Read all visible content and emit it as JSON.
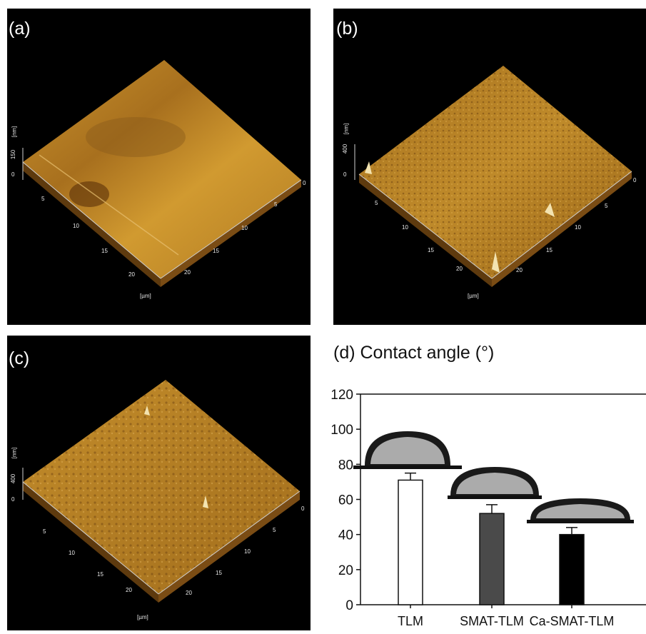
{
  "panels": [
    {
      "label": "(a)",
      "z_unit": "[nm]",
      "z_max": "150",
      "z_min": "0",
      "xy_unit": "[µm]",
      "left_ticks": [
        "5",
        "10",
        "15",
        "20"
      ],
      "right_ticks": [
        "0",
        "5",
        "10",
        "15",
        "20"
      ]
    },
    {
      "label": "(b)",
      "z_unit": "[nm]",
      "z_max": "400",
      "z_min": "0",
      "xy_unit": "[µm]",
      "left_ticks": [
        "5",
        "10",
        "15",
        "20"
      ],
      "right_ticks": [
        "0",
        "5",
        "10",
        "15",
        "20"
      ]
    },
    {
      "label": "(c)",
      "z_unit": "[nm]",
      "z_max": "400",
      "z_min": "0",
      "xy_unit": "[µm]",
      "left_ticks": [
        "5",
        "10",
        "15",
        "20"
      ],
      "right_ticks": [
        "0",
        "5",
        "10",
        "15",
        "20"
      ]
    }
  ],
  "colors": {
    "surface_light": "#d9a63a",
    "surface_mid": "#b98326",
    "surface_dark": "#6b4110",
    "bar_tlm": "#ffffff",
    "bar_smat": "#4a4a4a",
    "bar_ca": "#000000"
  },
  "chart_data": {
    "type": "bar",
    "title": "(d) Contact angle (°)",
    "categories": [
      "TLM",
      "SMAT-TLM",
      "Ca-SMAT-TLM"
    ],
    "values": [
      71,
      52,
      40
    ],
    "errors": [
      4,
      5,
      4
    ],
    "ylim": [
      0,
      120
    ],
    "yticks": [
      "0",
      "20",
      "40",
      "60",
      "80",
      "100",
      "120"
    ],
    "xlabel": "",
    "ylabel": ""
  }
}
